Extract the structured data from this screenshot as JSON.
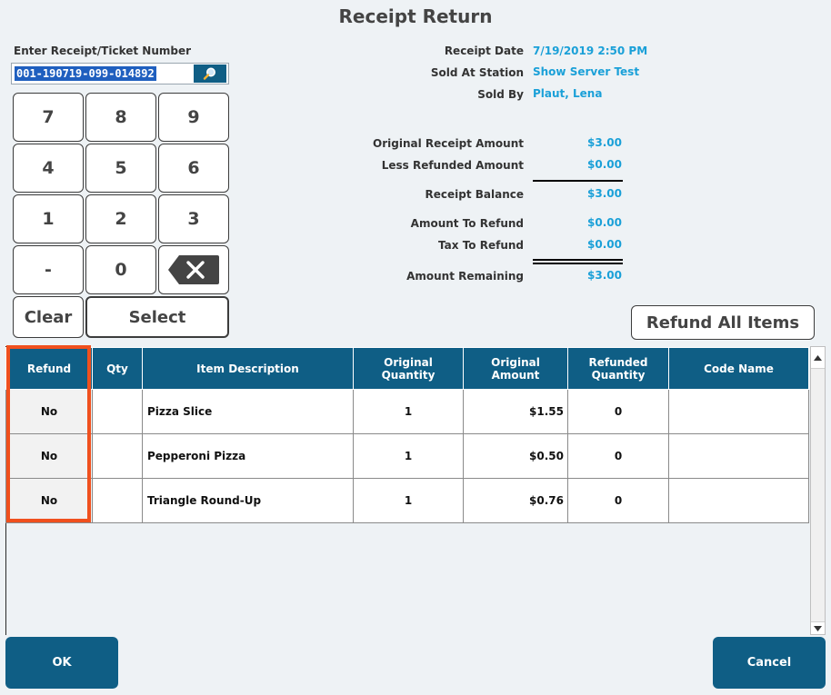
{
  "title": "Receipt Return",
  "ticket": {
    "label": "Enter Receipt/Ticket Number",
    "value": "001-190719-099-014892"
  },
  "keypad": {
    "keys": [
      "7",
      "8",
      "9",
      "4",
      "5",
      "6",
      "1",
      "2",
      "3",
      "-",
      "0"
    ],
    "clear_label": "Clear",
    "select_label": "Select"
  },
  "receipt_info": {
    "date_label": "Receipt Date",
    "date_value": "7/19/2019 2:50 PM",
    "station_label": "Sold At Station",
    "station_value": "Show Server Test",
    "sold_by_label": "Sold By",
    "sold_by_value": "Plaut, Lena"
  },
  "amounts": {
    "original_label": "Original Receipt Amount",
    "original_value": "$3.00",
    "less_refunded_label": "Less Refunded Amount",
    "less_refunded_value": "$0.00",
    "balance_label": "Receipt Balance",
    "balance_value": "$3.00",
    "to_refund_label": "Amount To Refund",
    "to_refund_value": "$0.00",
    "tax_label": "Tax To Refund",
    "tax_value": "$0.00",
    "remaining_label": "Amount Remaining",
    "remaining_value": "$3.00"
  },
  "refund_all_label": "Refund All Items",
  "table": {
    "headers": {
      "refund": "Refund",
      "qty": "Qty",
      "description": "Item Description",
      "orig_qty_1": "Original",
      "orig_qty_2": "Quantity",
      "orig_amt_1": "Original",
      "orig_amt_2": "Amount",
      "ref_qty_1": "Refunded",
      "ref_qty_2": "Quantity",
      "code_name": "Code Name"
    },
    "rows": [
      {
        "refund": "No",
        "qty": "",
        "description": "Pizza Slice",
        "original_quantity": "1",
        "original_amount": "$1.55",
        "refunded_quantity": "0",
        "code_name": ""
      },
      {
        "refund": "No",
        "qty": "",
        "description": "Pepperoni Pizza",
        "original_quantity": "1",
        "original_amount": "$0.50",
        "refunded_quantity": "0",
        "code_name": ""
      },
      {
        "refund": "No",
        "qty": "",
        "description": "Triangle Round-Up",
        "original_quantity": "1",
        "original_amount": "$0.76",
        "refunded_quantity": "0",
        "code_name": ""
      }
    ]
  },
  "footer": {
    "ok_label": "OK",
    "cancel_label": "Cancel"
  },
  "colors": {
    "header_blue": "#0f5e85",
    "value_blue": "#1aa0d8",
    "highlight": "#f0501e"
  }
}
